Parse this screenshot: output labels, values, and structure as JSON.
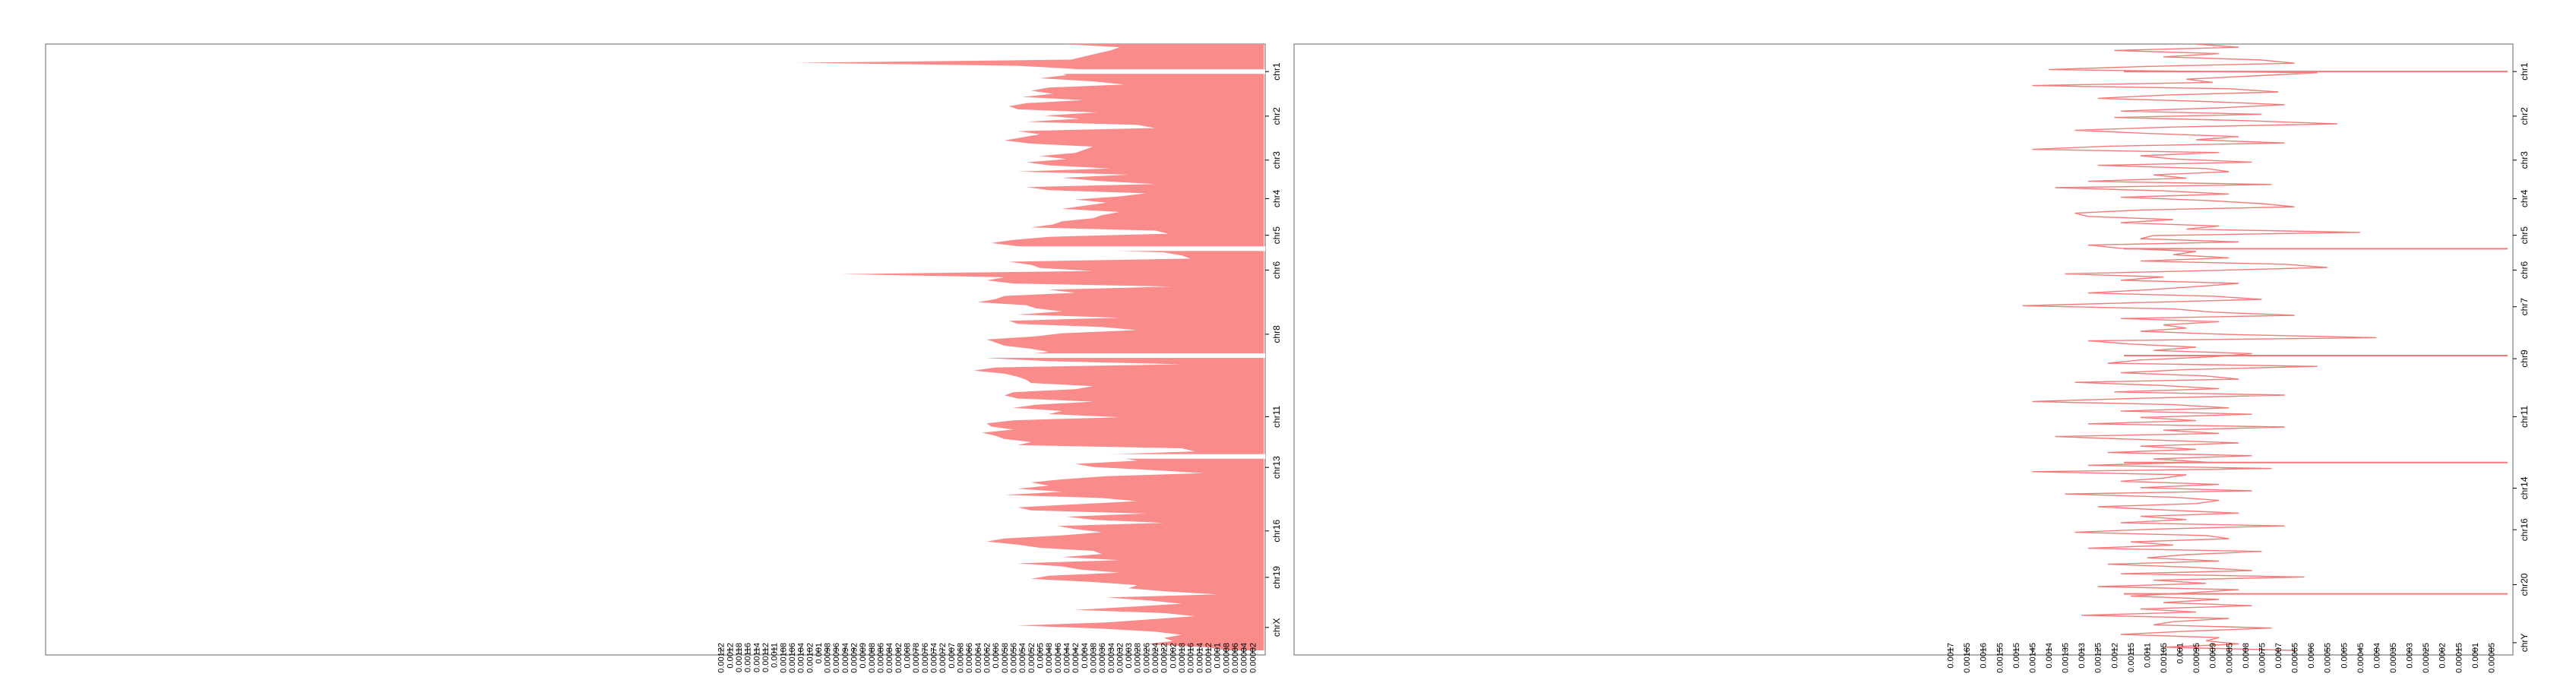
{
  "colors": {
    "fill": "#f98b8b",
    "line": "#f47a7a",
    "frame": "#999999",
    "tick": "#000000"
  },
  "chart_data": [
    {
      "type": "area",
      "orientation": "horizontal",
      "x_scale": "reversed",
      "xlim": [
        0.0013,
        0.0
      ],
      "x_tick_values": [
        0.00122,
        0.0012,
        0.00118,
        0.00116,
        0.00114,
        0.00112,
        0.0011,
        0.00108,
        0.00106,
        0.00104,
        0.00102,
        0.001,
        0.00098,
        0.00096,
        0.00094,
        0.00092,
        0.0009,
        0.00088,
        0.00086,
        0.00084,
        0.00082,
        0.0008,
        0.00078,
        0.00076,
        0.00074,
        0.00072,
        0.0007,
        0.00068,
        0.00066,
        0.00064,
        0.00062,
        0.0006,
        0.00058,
        0.00056,
        0.00054,
        0.00052,
        0.0005,
        0.00048,
        0.00046,
        0.00044,
        0.00042,
        0.0004,
        0.00038,
        0.00036,
        0.00034,
        0.00032,
        0.0003,
        0.00028,
        0.00026,
        0.00024,
        0.00022,
        0.0002,
        0.00018,
        0.00016,
        0.00014,
        0.00012,
        0.0001,
        8e-05,
        6e-05,
        4e-05,
        2e-05
      ],
      "x_tick_labels": [
        "0.00122",
        "0.0012",
        "0.00118",
        "0.00116",
        "0.00114",
        "0.00112",
        "0.0011",
        "0.00108",
        "0.00106",
        "0.00104",
        "0.00102",
        "0.001",
        "0.00098",
        "0.00096",
        "0.00094",
        "0.00092",
        "0.0009",
        "0.00088",
        "0.00086",
        "0.00084",
        "0.00082",
        "0.0008",
        "0.00078",
        "0.00076",
        "0.00074",
        "0.00072",
        "0.0007",
        "0.00068",
        "0.00066",
        "0.00064",
        "0.00062",
        "0.0006",
        "0.00058",
        "0.00056",
        "0.00054",
        "0.00052",
        "0.0005",
        "0.00048",
        "0.00046",
        "0.00044",
        "0.00042",
        "0.0004",
        "0.00038",
        "0.00036",
        "0.00034",
        "0.00032",
        "0.0003",
        "0.00028",
        "0.00026",
        "0.00024",
        "0.00022",
        "0.0002",
        "0.00018",
        "0.00016",
        "0.00014",
        "0.00012",
        "0.0001",
        "0.00008",
        "0.00006",
        "0.00004",
        "0.00002"
      ],
      "chromosomes": [
        "chr1",
        "chr2",
        "chr3",
        "chr4",
        "chr5",
        "chr6",
        "chr8",
        "chr11",
        "chr13",
        "chr16",
        "chr19",
        "chrX"
      ],
      "chr_label_fraction": [
        0.045,
        0.118,
        0.19,
        0.253,
        0.313,
        0.37,
        0.475,
        0.61,
        0.693,
        0.797,
        0.873,
        0.955
      ],
      "values": [
        0.00045,
        0.00032,
        0.00034,
        0.00037,
        0.0004,
        0.00043,
        0.00105,
        0.00055,
        0.00042,
        0.00046,
        0.00044,
        0.0005,
        0.00038,
        0.00031,
        0.00048,
        0.00052,
        0.00047,
        0.00054,
        0.0004,
        0.00053,
        0.00057,
        0.00055,
        0.00037,
        0.00049,
        0.00041,
        0.00053,
        0.00028,
        0.00024,
        0.00055,
        0.0005,
        0.00054,
        0.00058,
        0.00052,
        0.00038,
        0.0004,
        0.00042,
        0.0005,
        0.00044,
        0.00053,
        0.00048,
        0.00034,
        0.00055,
        0.0003,
        0.00045,
        0.00037,
        0.00024,
        0.00053,
        0.00048,
        0.00026,
        0.00032,
        0.00042,
        0.00035,
        0.0004,
        0.00045,
        0.00032,
        0.00036,
        0.00038,
        0.00045,
        0.00047,
        0.00052,
        0.00024,
        0.00021,
        0.00048,
        0.00056,
        0.00061,
        0.00055,
        0.00044,
        0.00022,
        0.00018,
        0.00016,
        0.00057,
        0.00052,
        0.0005,
        0.00038,
        0.00095,
        0.00058,
        0.00062,
        0.00056,
        0.0002,
        0.00048,
        0.00042,
        0.00058,
        0.0006,
        0.00064,
        0.00053,
        0.00051,
        0.00045,
        0.00055,
        0.00032,
        0.00057,
        0.00055,
        0.00036,
        0.00028,
        0.00045,
        0.00051,
        0.00062,
        0.0006,
        0.00058,
        0.00052,
        0.00048,
        0.00055,
        0.00062,
        0.00048,
        0.00018,
        0.0006,
        0.00065,
        0.00058,
        0.00055,
        0.00053,
        0.00052,
        0.00038,
        0.00042,
        0.00056,
        0.00058,
        0.00055,
        0.00038,
        0.00051,
        0.00056,
        0.00045,
        0.00048,
        0.00032,
        0.00056,
        0.00062,
        0.00061,
        0.00056,
        0.00063,
        0.0006,
        0.00058,
        0.00052,
        0.00055,
        0.00018,
        0.00015,
        0.00036,
        0.00032,
        0.00028,
        0.00042,
        0.00038,
        0.00025,
        0.00013,
        0.00035,
        0.00045,
        0.00052,
        0.00048,
        0.00055,
        0.00045,
        0.00058,
        0.00036,
        0.00028,
        0.00042,
        0.00055,
        0.00052,
        0.00026,
        0.00044,
        0.00038,
        0.00022,
        0.00046,
        0.00042,
        0.00036,
        0.00045,
        0.00058,
        0.00062,
        0.00055,
        0.0005,
        0.00038,
        0.00036,
        0.00045,
        0.00032,
        0.00055,
        0.00045,
        0.00041,
        0.00032,
        0.00048,
        0.00052,
        0.00038,
        0.00028,
        0.0003,
        0.00022,
        0.0001,
        0.00035,
        0.00025,
        0.00018,
        0.0003,
        0.00042,
        0.00022,
        0.00015,
        0.00025,
        0.00035,
        0.00055,
        0.00036,
        0.00024,
        0.00018,
        0.00022,
        0.0002,
        0.00026,
        0.00012,
        8e-05
      ],
      "gaps_fraction": [
        0.045,
        0.335,
        0.51,
        0.675
      ]
    },
    {
      "type": "line",
      "orientation": "horizontal",
      "x_scale": "reversed",
      "xlim": [
        0.00175,
        0.0
      ],
      "x_tick_values": [
        0.0017,
        0.00165,
        0.0016,
        0.00155,
        0.0015,
        0.00145,
        0.0014,
        0.00135,
        0.0013,
        0.00125,
        0.0012,
        0.00115,
        0.0011,
        0.00105,
        0.001,
        0.00095,
        0.0009,
        0.00085,
        0.0008,
        0.00075,
        0.0007,
        0.00065,
        0.0006,
        0.00055,
        0.0005,
        0.00045,
        0.0004,
        0.00035,
        0.0003,
        0.00025,
        0.0002,
        0.00015,
        0.0001,
        5e-05
      ],
      "x_tick_labels": [
        "0.0017",
        "0.00165",
        "0.0016",
        "0.00155",
        "0.0015",
        "0.00145",
        "0.0014",
        "0.00135",
        "0.0013",
        "0.00125",
        "0.0012",
        "0.00115",
        "0.0011",
        "0.00105",
        "0.001",
        "0.00095",
        "0.0009",
        "0.00085",
        "0.0008",
        "0.00075",
        "0.0007",
        "0.00065",
        "0.0006",
        "0.00055",
        "0.0005",
        "0.00045",
        "0.0004",
        "0.00035",
        "0.0003",
        "0.00025",
        "0.0002",
        "0.00015",
        "0.0001",
        "0.00005"
      ],
      "chromosomes": [
        "chr1",
        "chr2",
        "chr3",
        "chr4",
        "chr5",
        "chr6",
        "chr7",
        "chr9",
        "chr11",
        "chr14",
        "chr16",
        "chr20",
        "chrY"
      ],
      "chr_label_fraction": [
        0.045,
        0.118,
        0.19,
        0.253,
        0.313,
        0.37,
        0.43,
        0.515,
        0.61,
        0.727,
        0.795,
        0.885,
        0.98
      ],
      "values": [
        0.00095,
        0.00082,
        0.0012,
        0.00088,
        0.00105,
        0.00075,
        0.00065,
        0.0011,
        0.0014,
        0.00058,
        0.00078,
        0.00098,
        0.0009,
        0.00145,
        0.00085,
        0.0007,
        0.00105,
        0.00125,
        0.00092,
        0.00068,
        0.00088,
        0.00118,
        0.00075,
        0.0012,
        0.0008,
        0.00052,
        0.00102,
        0.00132,
        0.0011,
        0.00082,
        0.00095,
        0.00068,
        0.00122,
        0.00145,
        0.00088,
        0.00112,
        0.00102,
        0.00078,
        0.00125,
        0.00092,
        0.00085,
        0.00108,
        0.00098,
        0.00128,
        0.00072,
        0.00138,
        0.00105,
        0.00085,
        0.00118,
        0.00092,
        0.00075,
        0.00065,
        0.00112,
        0.00132,
        0.00128,
        0.00102,
        0.00118,
        0.00088,
        0.00098,
        0.00045,
        0.00108,
        0.00112,
        0.00082,
        0.00128,
        0.00118,
        0.00095,
        0.00102,
        0.00085,
        0.00112,
        0.00068,
        0.00055,
        0.00092,
        0.00135,
        0.00105,
        0.00118,
        0.00082,
        0.00095,
        0.0011,
        0.00128,
        0.0009,
        0.00075,
        0.00112,
        0.00148,
        0.00102,
        0.0009,
        0.00065,
        0.00118,
        0.00088,
        0.00105,
        0.00098,
        0.00112,
        0.00085,
        0.0004,
        0.00128,
        0.00115,
        0.00095,
        0.00108,
        0.00078,
        0.0009,
        0.00112,
        0.00122,
        0.00058,
        0.00098,
        0.00118,
        0.00092,
        0.00082,
        0.00132,
        0.00105,
        0.00088,
        0.0012,
        0.00068,
        0.00112,
        0.00145,
        0.00102,
        0.00085,
        0.00118,
        0.00078,
        0.00112,
        0.00095,
        0.00128,
        0.00068,
        0.00105,
        0.00088,
        0.00138,
        0.0011,
        0.00082,
        0.00112,
        0.00095,
        0.00122,
        0.00078,
        0.00108,
        0.00092,
        0.00128,
        0.00072,
        0.00145,
        0.00098,
        0.00105,
        0.00118,
        0.00088,
        0.00112,
        0.00078,
        0.00135,
        0.00102,
        0.00088,
        0.00095,
        0.00125,
        0.00105,
        0.00082,
        0.00112,
        0.00098,
        0.00118,
        0.00068,
        0.00108,
        0.00132,
        0.00092,
        0.00085,
        0.00115,
        0.00102,
        0.00128,
        0.00075,
        0.00098,
        0.0011,
        0.00088,
        0.00122,
        0.00095,
        0.00078,
        0.00118,
        0.00062,
        0.00108,
        0.00092,
        0.00125,
        0.00082,
        0.00098,
        0.00115,
        0.00088,
        0.00105,
        0.00078,
        0.00112,
        0.00095,
        0.0013,
        0.00085,
        0.00102,
        0.00108,
        0.00072,
        0.00098,
        0.00118,
        0.00088,
        0.00092,
        0.00082,
        0.00105,
        0.00065
      ],
      "spikes_fraction": [
        0.045,
        0.335,
        0.51,
        0.685,
        0.9
      ]
    }
  ]
}
